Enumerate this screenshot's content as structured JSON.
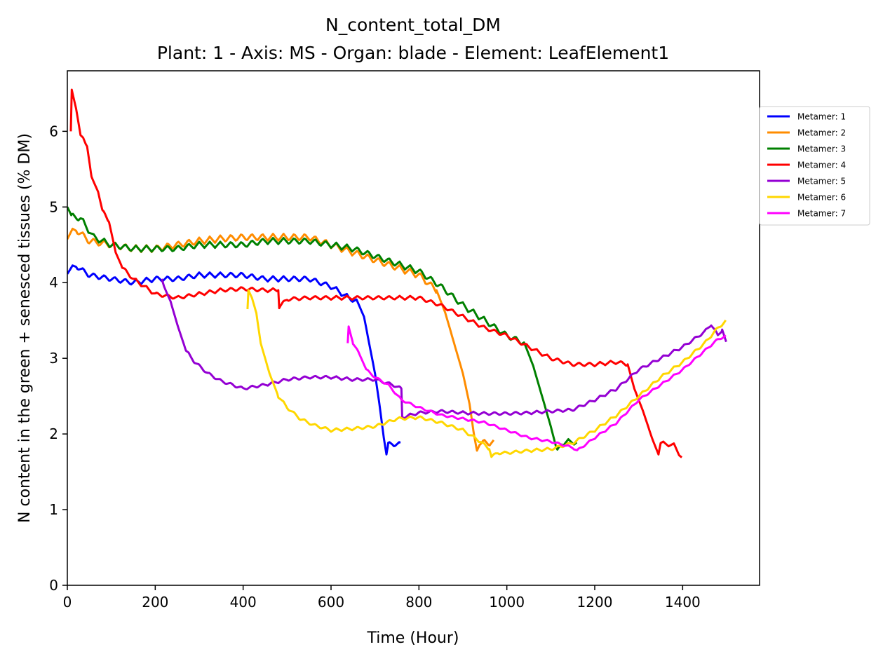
{
  "chart_data": {
    "type": "line",
    "title": "N_content_total_DM",
    "subtitle": "Plant: 1 - Axis: MS - Organ: blade - Element: LeafElement1",
    "xlabel": "Time (Hour)",
    "ylabel": "N content in the green + senesced tissues (% DM)",
    "xlim": [
      0,
      1575
    ],
    "ylim": [
      0,
      6.8
    ],
    "xticks": [
      0,
      200,
      400,
      600,
      800,
      1000,
      1200,
      1400
    ],
    "yticks": [
      0,
      1,
      2,
      3,
      4,
      5,
      6
    ],
    "grid": false,
    "legend_position": "right, outside plot",
    "series": [
      {
        "name": "Metamer: 1",
        "color": "#0000ff",
        "osc": 0.07,
        "points": [
          [
            0,
            4.15
          ],
          [
            20,
            4.22
          ],
          [
            50,
            4.1
          ],
          [
            100,
            4.05
          ],
          [
            150,
            4.0
          ],
          [
            200,
            4.05
          ],
          [
            250,
            4.05
          ],
          [
            300,
            4.1
          ],
          [
            350,
            4.1
          ],
          [
            400,
            4.1
          ],
          [
            450,
            4.05
          ],
          [
            500,
            4.05
          ],
          [
            550,
            4.05
          ],
          [
            600,
            3.95
          ],
          [
            640,
            3.8
          ],
          [
            660,
            3.75
          ],
          [
            675,
            3.55
          ],
          [
            690,
            3.1
          ],
          [
            700,
            2.8
          ],
          [
            710,
            2.4
          ],
          [
            720,
            1.95
          ],
          [
            726,
            1.73
          ],
          [
            730,
            1.86
          ],
          [
            740,
            1.87
          ],
          [
            760,
            1.86
          ]
        ]
      },
      {
        "name": "Metamer: 2",
        "color": "#ff8c00",
        "osc": 0.09,
        "points": [
          [
            0,
            4.62
          ],
          [
            20,
            4.7
          ],
          [
            50,
            4.55
          ],
          [
            100,
            4.5
          ],
          [
            150,
            4.45
          ],
          [
            200,
            4.45
          ],
          [
            250,
            4.5
          ],
          [
            300,
            4.55
          ],
          [
            350,
            4.58
          ],
          [
            400,
            4.6
          ],
          [
            450,
            4.6
          ],
          [
            500,
            4.6
          ],
          [
            550,
            4.6
          ],
          [
            600,
            4.5
          ],
          [
            650,
            4.4
          ],
          [
            700,
            4.3
          ],
          [
            750,
            4.2
          ],
          [
            800,
            4.1
          ],
          [
            840,
            3.9
          ],
          [
            860,
            3.6
          ],
          [
            880,
            3.2
          ],
          [
            900,
            2.8
          ],
          [
            915,
            2.4
          ],
          [
            925,
            2.0
          ],
          [
            932,
            1.78
          ],
          [
            940,
            1.88
          ],
          [
            970,
            1.89
          ]
        ]
      },
      {
        "name": "Metamer: 3",
        "color": "#008000",
        "osc": 0.08,
        "points": [
          [
            0,
            5.0
          ],
          [
            10,
            4.88
          ],
          [
            30,
            4.85
          ],
          [
            60,
            4.6
          ],
          [
            100,
            4.5
          ],
          [
            150,
            4.45
          ],
          [
            200,
            4.45
          ],
          [
            250,
            4.45
          ],
          [
            300,
            4.5
          ],
          [
            350,
            4.5
          ],
          [
            400,
            4.5
          ],
          [
            450,
            4.55
          ],
          [
            500,
            4.55
          ],
          [
            550,
            4.55
          ],
          [
            600,
            4.5
          ],
          [
            650,
            4.45
          ],
          [
            700,
            4.35
          ],
          [
            750,
            4.25
          ],
          [
            800,
            4.15
          ],
          [
            850,
            3.95
          ],
          [
            900,
            3.7
          ],
          [
            950,
            3.5
          ],
          [
            1000,
            3.3
          ],
          [
            1040,
            3.2
          ],
          [
            1060,
            2.9
          ],
          [
            1080,
            2.5
          ],
          [
            1100,
            2.1
          ],
          [
            1115,
            1.76
          ],
          [
            1125,
            1.88
          ],
          [
            1150,
            1.9
          ],
          [
            1160,
            1.88
          ]
        ]
      },
      {
        "name": "Metamer: 4",
        "color": "#ff0000",
        "osc": 0.05,
        "points": [
          [
            8,
            6.0
          ],
          [
            10,
            6.55
          ],
          [
            20,
            6.3
          ],
          [
            30,
            5.95
          ],
          [
            45,
            5.8
          ],
          [
            55,
            5.4
          ],
          [
            70,
            5.2
          ],
          [
            80,
            4.95
          ],
          [
            95,
            4.8
          ],
          [
            110,
            4.4
          ],
          [
            125,
            4.2
          ],
          [
            150,
            4.05
          ],
          [
            200,
            3.85
          ],
          [
            250,
            3.8
          ],
          [
            300,
            3.85
          ],
          [
            350,
            3.9
          ],
          [
            400,
            3.92
          ],
          [
            450,
            3.9
          ],
          [
            480,
            3.9
          ],
          [
            482,
            3.68
          ],
          [
            500,
            3.78
          ],
          [
            550,
            3.8
          ],
          [
            600,
            3.8
          ],
          [
            650,
            3.8
          ],
          [
            700,
            3.8
          ],
          [
            750,
            3.8
          ],
          [
            800,
            3.8
          ],
          [
            850,
            3.7
          ],
          [
            900,
            3.55
          ],
          [
            950,
            3.4
          ],
          [
            1000,
            3.3
          ],
          [
            1050,
            3.15
          ],
          [
            1100,
            3.0
          ],
          [
            1150,
            2.92
          ],
          [
            1200,
            2.92
          ],
          [
            1250,
            2.95
          ],
          [
            1275,
            2.92
          ],
          [
            1290,
            2.6
          ],
          [
            1310,
            2.3
          ],
          [
            1330,
            1.95
          ],
          [
            1345,
            1.73
          ],
          [
            1350,
            1.88
          ],
          [
            1380,
            1.85
          ],
          [
            1398,
            1.69
          ]
        ]
      },
      {
        "name": "Metamer: 5",
        "color": "#9400d3",
        "osc": 0.04,
        "points": [
          [
            215,
            4.05
          ],
          [
            220,
            3.95
          ],
          [
            235,
            3.75
          ],
          [
            250,
            3.45
          ],
          [
            270,
            3.1
          ],
          [
            290,
            2.95
          ],
          [
            320,
            2.8
          ],
          [
            350,
            2.7
          ],
          [
            400,
            2.6
          ],
          [
            450,
            2.65
          ],
          [
            500,
            2.72
          ],
          [
            550,
            2.75
          ],
          [
            600,
            2.75
          ],
          [
            650,
            2.72
          ],
          [
            700,
            2.72
          ],
          [
            740,
            2.65
          ],
          [
            760,
            2.6
          ],
          [
            762,
            2.22
          ],
          [
            800,
            2.28
          ],
          [
            850,
            2.3
          ],
          [
            900,
            2.28
          ],
          [
            950,
            2.27
          ],
          [
            1000,
            2.27
          ],
          [
            1050,
            2.28
          ],
          [
            1100,
            2.3
          ],
          [
            1150,
            2.32
          ],
          [
            1200,
            2.45
          ],
          [
            1250,
            2.6
          ],
          [
            1300,
            2.85
          ],
          [
            1350,
            3.0
          ],
          [
            1400,
            3.15
          ],
          [
            1450,
            3.35
          ],
          [
            1465,
            3.45
          ],
          [
            1480,
            3.3
          ],
          [
            1490,
            3.38
          ],
          [
            1500,
            3.2
          ]
        ]
      },
      {
        "name": "Metamer: 6",
        "color": "#ffd700",
        "osc": 0.04,
        "points": [
          [
            410,
            3.65
          ],
          [
            412,
            3.9
          ],
          [
            420,
            3.8
          ],
          [
            430,
            3.6
          ],
          [
            440,
            3.2
          ],
          [
            460,
            2.8
          ],
          [
            480,
            2.5
          ],
          [
            500,
            2.35
          ],
          [
            530,
            2.2
          ],
          [
            560,
            2.12
          ],
          [
            600,
            2.05
          ],
          [
            650,
            2.07
          ],
          [
            700,
            2.1
          ],
          [
            750,
            2.2
          ],
          [
            800,
            2.22
          ],
          [
            850,
            2.15
          ],
          [
            900,
            2.05
          ],
          [
            940,
            1.9
          ],
          [
            960,
            1.8
          ],
          [
            965,
            1.7
          ],
          [
            980,
            1.75
          ],
          [
            1000,
            1.75
          ],
          [
            1050,
            1.78
          ],
          [
            1100,
            1.8
          ],
          [
            1150,
            1.88
          ],
          [
            1200,
            2.05
          ],
          [
            1250,
            2.25
          ],
          [
            1300,
            2.5
          ],
          [
            1350,
            2.75
          ],
          [
            1400,
            2.95
          ],
          [
            1450,
            3.2
          ],
          [
            1480,
            3.4
          ],
          [
            1500,
            3.5
          ]
        ]
      },
      {
        "name": "Metamer: 7",
        "color": "#ff00ff",
        "osc": 0.03,
        "points": [
          [
            638,
            3.2
          ],
          [
            640,
            3.42
          ],
          [
            650,
            3.2
          ],
          [
            665,
            3.05
          ],
          [
            680,
            2.85
          ],
          [
            700,
            2.75
          ],
          [
            730,
            2.65
          ],
          [
            760,
            2.45
          ],
          [
            800,
            2.35
          ],
          [
            850,
            2.25
          ],
          [
            900,
            2.2
          ],
          [
            950,
            2.15
          ],
          [
            1000,
            2.05
          ],
          [
            1050,
            1.95
          ],
          [
            1100,
            1.9
          ],
          [
            1150,
            1.82
          ],
          [
            1160,
            1.78
          ],
          [
            1200,
            1.95
          ],
          [
            1250,
            2.15
          ],
          [
            1300,
            2.45
          ],
          [
            1350,
            2.65
          ],
          [
            1400,
            2.85
          ],
          [
            1450,
            3.1
          ],
          [
            1480,
            3.25
          ],
          [
            1500,
            3.3
          ]
        ]
      }
    ]
  }
}
